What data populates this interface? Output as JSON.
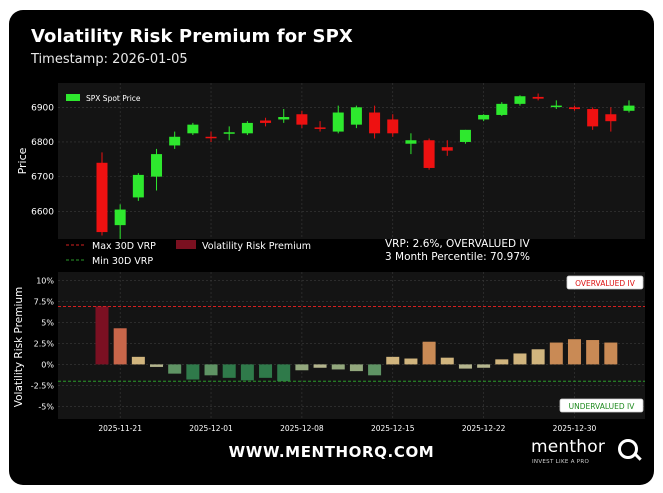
{
  "header": {
    "title": "Volatility Risk Premium for SPX",
    "timestamp": "Timestamp: 2026-01-05"
  },
  "footer": {
    "url": "WWW.MENTHORQ.COM",
    "brand": "menthor",
    "tagline": "INVEST LIKE A PRO"
  },
  "colors": {
    "background": "#000000",
    "panel": "#141414",
    "up": "#2ee82e",
    "down": "#ee1111",
    "max_line": "#d42020",
    "min_line": "#2a9a2a"
  },
  "chart_data": [
    {
      "type": "candlestick",
      "legend": [
        "SPX Spot Price"
      ],
      "ylabel": "Price",
      "ylim": [
        6520,
        6950
      ],
      "yticks": [
        6600,
        6700,
        6800,
        6900
      ],
      "grid": true,
      "legend_position": "top-left",
      "candles": [
        {
          "x": "2025-11-20",
          "open": 6740,
          "high": 6770,
          "low": 6530,
          "close": 6540
        },
        {
          "x": "2025-11-21",
          "open": 6560,
          "high": 6620,
          "low": 6520,
          "close": 6605
        },
        {
          "x": "2025-11-24",
          "open": 6640,
          "high": 6710,
          "low": 6630,
          "close": 6705
        },
        {
          "x": "2025-11-25",
          "open": 6700,
          "high": 6780,
          "low": 6660,
          "close": 6765
        },
        {
          "x": "2025-11-26",
          "open": 6790,
          "high": 6830,
          "low": 6780,
          "close": 6815
        },
        {
          "x": "2025-11-28",
          "open": 6825,
          "high": 6855,
          "low": 6820,
          "close": 6850
        },
        {
          "x": "2025-12-01",
          "open": 6815,
          "high": 6830,
          "low": 6800,
          "close": 6812
        },
        {
          "x": "2025-12-02",
          "open": 6825,
          "high": 6845,
          "low": 6805,
          "close": 6828
        },
        {
          "x": "2025-12-03",
          "open": 6825,
          "high": 6860,
          "low": 6820,
          "close": 6855
        },
        {
          "x": "2025-12-04",
          "open": 6862,
          "high": 6870,
          "low": 6845,
          "close": 6855
        },
        {
          "x": "2025-12-05",
          "open": 6865,
          "high": 6895,
          "low": 6855,
          "close": 6872
        },
        {
          "x": "2025-12-08",
          "open": 6880,
          "high": 6890,
          "low": 6840,
          "close": 6850
        },
        {
          "x": "2025-12-09",
          "open": 6842,
          "high": 6860,
          "low": 6830,
          "close": 6840
        },
        {
          "x": "2025-12-10",
          "open": 6830,
          "high": 6905,
          "low": 6825,
          "close": 6885
        },
        {
          "x": "2025-12-11",
          "open": 6850,
          "high": 6905,
          "low": 6840,
          "close": 6900
        },
        {
          "x": "2025-12-12",
          "open": 6885,
          "high": 6905,
          "low": 6810,
          "close": 6825
        },
        {
          "x": "2025-12-15",
          "open": 6865,
          "high": 6880,
          "low": 6815,
          "close": 6825
        },
        {
          "x": "2025-12-16",
          "open": 6795,
          "high": 6825,
          "low": 6765,
          "close": 6805
        },
        {
          "x": "2025-12-17",
          "open": 6805,
          "high": 6810,
          "low": 6720,
          "close": 6725
        },
        {
          "x": "2025-12-18",
          "open": 6785,
          "high": 6805,
          "low": 6760,
          "close": 6775
        },
        {
          "x": "2025-12-19",
          "open": 6800,
          "high": 6835,
          "low": 6795,
          "close": 6835
        },
        {
          "x": "2025-12-22",
          "open": 6865,
          "high": 6880,
          "low": 6860,
          "close": 6878
        },
        {
          "x": "2025-12-23",
          "open": 6878,
          "high": 6915,
          "low": 6875,
          "close": 6910
        },
        {
          "x": "2025-12-24",
          "open": 6910,
          "high": 6935,
          "low": 6905,
          "close": 6932
        },
        {
          "x": "2025-12-26",
          "open": 6930,
          "high": 6940,
          "low": 6920,
          "close": 6925
        },
        {
          "x": "2025-12-29",
          "open": 6905,
          "high": 6920,
          "low": 6895,
          "close": 6905
        },
        {
          "x": "2025-12-30",
          "open": 6900,
          "high": 6905,
          "low": 6890,
          "close": 6895
        },
        {
          "x": "2025-12-31",
          "open": 6895,
          "high": 6900,
          "low": 6835,
          "close": 6845
        },
        {
          "x": "2026-01-02",
          "open": 6880,
          "high": 6900,
          "low": 6830,
          "close": 6860
        },
        {
          "x": "2026-01-05",
          "open": 6890,
          "high": 6920,
          "low": 6885,
          "close": 6905
        }
      ]
    },
    {
      "type": "bar",
      "ylabel": "Volatility Risk Premium",
      "ylim": [
        -6.5,
        11
      ],
      "yticks": [
        -5,
        -2.5,
        0,
        2.5,
        5,
        7.5,
        10
      ],
      "ytick_labels": [
        "-5%",
        "-2.5%",
        "0%",
        "2.5%",
        "5%",
        "7.5%",
        "10%"
      ],
      "xtick_labels": [
        "2025-11-21",
        "2025-12-01",
        "2025-12-08",
        "2025-12-15",
        "2025-12-22",
        "2025-12-30"
      ],
      "grid": true,
      "legend": [
        {
          "name": "Max 30D VRP",
          "style": "dashed",
          "color": "#d42020"
        },
        {
          "name": "Min 30D VRP",
          "style": "dashed",
          "color": "#2a9a2a"
        },
        {
          "name": "Volatility Risk Premium",
          "style": "patch",
          "color": "#7a1020"
        }
      ],
      "max_30d_vrp": 6.9,
      "min_30d_vrp": -2.0,
      "annotations": {
        "overvalued": "OVERVALUED IV",
        "undervalued": "UNDERVALUED IV",
        "vrp_status": "VRP: 2.6%, OVERVALUED IV",
        "percentile": "3 Month Percentile: 70.97%"
      },
      "bars": [
        {
          "x": "2025-11-20",
          "value": 6.9
        },
        {
          "x": "2025-11-21",
          "value": 4.3
        },
        {
          "x": "2025-11-24",
          "value": 0.9
        },
        {
          "x": "2025-11-25",
          "value": -0.3
        },
        {
          "x": "2025-11-26",
          "value": -1.1
        },
        {
          "x": "2025-11-28",
          "value": -1.8
        },
        {
          "x": "2025-12-01",
          "value": -1.3
        },
        {
          "x": "2025-12-02",
          "value": -1.6
        },
        {
          "x": "2025-12-03",
          "value": -1.9
        },
        {
          "x": "2025-12-04",
          "value": -1.6
        },
        {
          "x": "2025-12-05",
          "value": -2.0
        },
        {
          "x": "2025-12-08",
          "value": -0.7
        },
        {
          "x": "2025-12-09",
          "value": -0.4
        },
        {
          "x": "2025-12-10",
          "value": -0.6
        },
        {
          "x": "2025-12-11",
          "value": -0.8
        },
        {
          "x": "2025-12-12",
          "value": -1.3
        },
        {
          "x": "2025-12-15",
          "value": 0.9
        },
        {
          "x": "2025-12-16",
          "value": 0.7
        },
        {
          "x": "2025-12-17",
          "value": 2.7
        },
        {
          "x": "2025-12-18",
          "value": 0.8
        },
        {
          "x": "2025-12-19",
          "value": -0.5
        },
        {
          "x": "2025-12-22",
          "value": -0.4
        },
        {
          "x": "2025-12-23",
          "value": 0.6
        },
        {
          "x": "2025-12-24",
          "value": 1.3
        },
        {
          "x": "2025-12-26",
          "value": 1.8
        },
        {
          "x": "2025-12-29",
          "value": 2.6
        },
        {
          "x": "2025-12-30",
          "value": 3.0
        },
        {
          "x": "2025-12-31",
          "value": 2.9
        },
        {
          "x": "2026-01-02",
          "value": 2.6
        }
      ]
    }
  ]
}
